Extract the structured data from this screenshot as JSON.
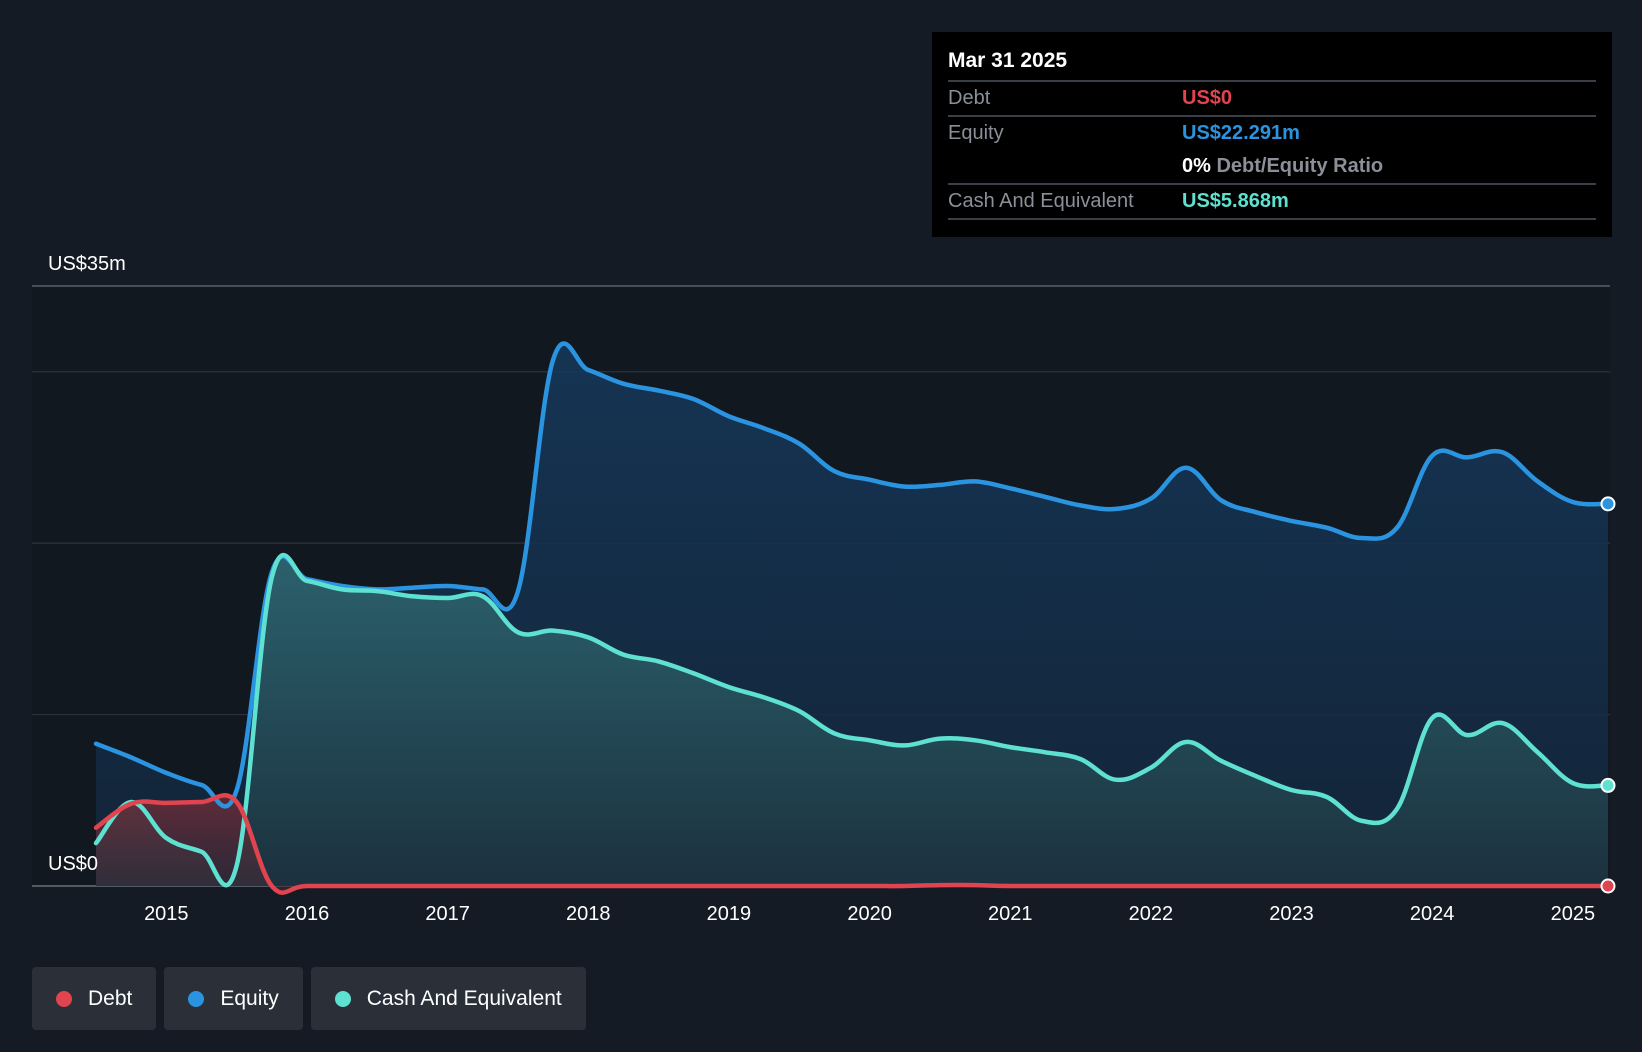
{
  "chart_data": {
    "type": "area",
    "title": "",
    "ylim": [
      0,
      35
    ],
    "y_labels": {
      "top": "US$35m",
      "bottom": "US$0"
    },
    "xlim": [
      2014.5,
      2025.25
    ],
    "x_ticks": [
      "2015",
      "2016",
      "2017",
      "2018",
      "2019",
      "2020",
      "2021",
      "2022",
      "2023",
      "2024",
      "2025"
    ],
    "grid": true,
    "series": [
      {
        "name": "Equity",
        "color": "#2b94e0",
        "x": [
          2014.5,
          2014.75,
          2015.0,
          2015.25,
          2015.5,
          2015.75,
          2016.0,
          2016.25,
          2016.5,
          2016.75,
          2017.0,
          2017.25,
          2017.5,
          2017.75,
          2018.0,
          2018.25,
          2018.5,
          2018.75,
          2019.0,
          2019.25,
          2019.5,
          2019.75,
          2020.0,
          2020.25,
          2020.5,
          2020.75,
          2021.0,
          2021.25,
          2021.5,
          2021.75,
          2022.0,
          2022.25,
          2022.5,
          2022.75,
          2023.0,
          2023.25,
          2023.5,
          2023.75,
          2024.0,
          2024.25,
          2024.5,
          2024.75,
          2025.0,
          2025.25
        ],
        "values": [
          8.3,
          7.5,
          6.6,
          5.9,
          5.6,
          18.3,
          17.9,
          17.5,
          17.3,
          17.4,
          17.5,
          17.3,
          17.2,
          30.7,
          30.1,
          29.3,
          28.9,
          28.4,
          27.4,
          26.7,
          25.8,
          24.2,
          23.7,
          23.3,
          23.4,
          23.6,
          23.2,
          22.7,
          22.2,
          22.0,
          22.6,
          24.4,
          22.5,
          21.8,
          21.3,
          20.9,
          20.3,
          20.9,
          25.1,
          25.0,
          25.3,
          23.6,
          22.4,
          22.291
        ]
      },
      {
        "name": "Cash And Equivalent",
        "color": "#5ee1d0",
        "x": [
          2014.5,
          2014.75,
          2015.0,
          2015.25,
          2015.5,
          2015.75,
          2016.0,
          2016.25,
          2016.5,
          2016.75,
          2017.0,
          2017.25,
          2017.5,
          2017.75,
          2018.0,
          2018.25,
          2018.5,
          2018.75,
          2019.0,
          2019.25,
          2019.5,
          2019.75,
          2020.0,
          2020.25,
          2020.5,
          2020.75,
          2021.0,
          2021.25,
          2021.5,
          2021.75,
          2022.0,
          2022.25,
          2022.5,
          2022.75,
          2023.0,
          2023.25,
          2023.5,
          2023.75,
          2024.0,
          2024.25,
          2024.5,
          2024.75,
          2025.0,
          2025.25
        ],
        "values": [
          2.5,
          4.9,
          2.8,
          2.0,
          1.2,
          18.0,
          17.8,
          17.3,
          17.2,
          16.9,
          16.8,
          16.9,
          14.8,
          14.9,
          14.5,
          13.5,
          13.1,
          12.4,
          11.6,
          11.0,
          10.2,
          8.9,
          8.5,
          8.2,
          8.6,
          8.5,
          8.1,
          7.8,
          7.4,
          6.2,
          6.9,
          8.4,
          7.3,
          6.4,
          5.6,
          5.2,
          3.8,
          4.5,
          9.8,
          8.8,
          9.5,
          7.8,
          6.0,
          5.868
        ]
      },
      {
        "name": "Debt",
        "color": "#e0444e",
        "x": [
          2014.5,
          2014.75,
          2015.0,
          2015.25,
          2015.5,
          2015.75,
          2016.0,
          2016.5,
          2017.0,
          2017.5,
          2018.0,
          2018.5,
          2019.0,
          2019.5,
          2020.0,
          2020.25,
          2020.5,
          2020.75,
          2021.0,
          2021.5,
          2022.0,
          2022.5,
          2023.0,
          2023.5,
          2024.0,
          2024.5,
          2025.0,
          2025.25
        ],
        "values": [
          3.4,
          4.8,
          4.85,
          4.9,
          4.9,
          0.0,
          0.0,
          0.0,
          0.0,
          0.0,
          0.0,
          0.0,
          0.0,
          0.0,
          0.0,
          0.0,
          0.05,
          0.05,
          0.0,
          0.0,
          0.0,
          0.0,
          0.0,
          0.0,
          0.0,
          0.0,
          0.0,
          0.0
        ]
      }
    ]
  },
  "tooltip": {
    "date": "Mar 31 2025",
    "debt_label": "Debt",
    "debt_value": "US$0",
    "equity_label": "Equity",
    "equity_value": "US$22.291m",
    "ratio_pct": "0%",
    "ratio_label": "Debt/Equity Ratio",
    "cash_label": "Cash And Equivalent",
    "cash_value": "US$5.868m"
  },
  "legend": [
    {
      "label": "Debt",
      "color": "#e0444e"
    },
    {
      "label": "Equity",
      "color": "#2b94e0"
    },
    {
      "label": "Cash And Equivalent",
      "color": "#5ee1d0"
    }
  ]
}
